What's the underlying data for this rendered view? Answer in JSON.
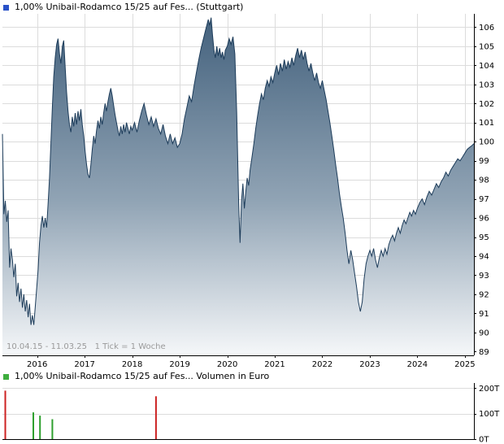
{
  "chart_data": [
    {
      "type": "area",
      "title": "1,00% Unibail-Rodamco 15/25 auf Fes... (Stuttgart)",
      "footer": "10.04.15 - 11.03.25   1 Tick = 1 Woche",
      "marker_color": "#2a52c8",
      "line_color": "#1d3c5a",
      "fill_top": "#42607c",
      "fill_mid": "#91a4b5",
      "fill_bottom": "#f5f7f9",
      "xlim": [
        2015.27,
        2025.19
      ],
      "ylim": [
        88.8,
        106.7
      ],
      "x_ticks": [
        2016,
        2017,
        2018,
        2019,
        2020,
        2021,
        2022,
        2023,
        2024,
        2025
      ],
      "y_ticks": [
        89,
        90,
        91,
        92,
        93,
        94,
        95,
        96,
        97,
        98,
        99,
        100,
        101,
        102,
        103,
        104,
        105,
        106
      ],
      "y_axis_side": "right",
      "grid": true,
      "points": [
        [
          2015.27,
          100.4
        ],
        [
          2015.3,
          96.2
        ],
        [
          2015.33,
          96.9
        ],
        [
          2015.36,
          95.8
        ],
        [
          2015.39,
          96.4
        ],
        [
          2015.42,
          93.4
        ],
        [
          2015.45,
          94.4
        ],
        [
          2015.48,
          93.8
        ],
        [
          2015.51,
          92.9
        ],
        [
          2015.54,
          93.6
        ],
        [
          2015.57,
          91.9
        ],
        [
          2015.6,
          92.6
        ],
        [
          2015.63,
          91.6
        ],
        [
          2015.66,
          92.3
        ],
        [
          2015.69,
          91.3
        ],
        [
          2015.72,
          92.0
        ],
        [
          2015.75,
          91.1
        ],
        [
          2015.78,
          91.7
        ],
        [
          2015.81,
          90.8
        ],
        [
          2015.84,
          91.5
        ],
        [
          2015.87,
          90.4
        ],
        [
          2015.9,
          90.9
        ],
        [
          2015.93,
          90.4
        ],
        [
          2015.96,
          91.3
        ],
        [
          2015.99,
          92.3
        ],
        [
          2016.02,
          93.3
        ],
        [
          2016.05,
          94.7
        ],
        [
          2016.08,
          95.6
        ],
        [
          2016.11,
          96.1
        ],
        [
          2016.14,
          95.5
        ],
        [
          2016.17,
          96.0
        ],
        [
          2016.2,
          95.5
        ],
        [
          2016.23,
          96.7
        ],
        [
          2016.26,
          98.1
        ],
        [
          2016.29,
          99.9
        ],
        [
          2016.32,
          101.8
        ],
        [
          2016.35,
          103.4
        ],
        [
          2016.38,
          104.4
        ],
        [
          2016.41,
          105.1
        ],
        [
          2016.44,
          105.4
        ],
        [
          2016.47,
          104.6
        ],
        [
          2016.5,
          104.1
        ],
        [
          2016.53,
          105.0
        ],
        [
          2016.56,
          105.3
        ],
        [
          2016.59,
          103.9
        ],
        [
          2016.62,
          102.6
        ],
        [
          2016.65,
          101.6
        ],
        [
          2016.68,
          100.9
        ],
        [
          2016.71,
          100.5
        ],
        [
          2016.74,
          101.3
        ],
        [
          2016.77,
          100.8
        ],
        [
          2016.8,
          101.5
        ],
        [
          2016.83,
          100.9
        ],
        [
          2016.86,
          101.6
        ],
        [
          2016.89,
          101.1
        ],
        [
          2016.92,
          101.7
        ],
        [
          2016.95,
          100.9
        ],
        [
          2016.98,
          100.3
        ],
        [
          2017.01,
          99.5
        ],
        [
          2017.04,
          98.8
        ],
        [
          2017.07,
          98.3
        ],
        [
          2017.1,
          98.1
        ],
        [
          2017.13,
          98.8
        ],
        [
          2017.16,
          99.6
        ],
        [
          2017.19,
          100.3
        ],
        [
          2017.22,
          99.9
        ],
        [
          2017.25,
          100.6
        ],
        [
          2017.28,
          101.1
        ],
        [
          2017.31,
          100.7
        ],
        [
          2017.34,
          101.3
        ],
        [
          2017.37,
          100.9
        ],
        [
          2017.4,
          101.5
        ],
        [
          2017.43,
          102.0
        ],
        [
          2017.46,
          101.6
        ],
        [
          2017.49,
          102.1
        ],
        [
          2017.52,
          102.5
        ],
        [
          2017.55,
          102.8
        ],
        [
          2017.58,
          102.4
        ],
        [
          2017.61,
          101.9
        ],
        [
          2017.64,
          101.4
        ],
        [
          2017.67,
          101.0
        ],
        [
          2017.7,
          100.6
        ],
        [
          2017.73,
          100.3
        ],
        [
          2017.76,
          100.8
        ],
        [
          2017.79,
          100.4
        ],
        [
          2017.82,
          100.9
        ],
        [
          2017.85,
          100.5
        ],
        [
          2017.88,
          101.0
        ],
        [
          2017.91,
          100.7
        ],
        [
          2017.94,
          100.4
        ],
        [
          2017.97,
          100.8
        ],
        [
          2018.0,
          100.6
        ],
        [
          2018.05,
          101.0
        ],
        [
          2018.1,
          100.5
        ],
        [
          2018.15,
          101.1
        ],
        [
          2018.2,
          101.6
        ],
        [
          2018.25,
          102.0
        ],
        [
          2018.3,
          101.4
        ],
        [
          2018.35,
          100.9
        ],
        [
          2018.4,
          101.3
        ],
        [
          2018.45,
          100.8
        ],
        [
          2018.5,
          101.2
        ],
        [
          2018.55,
          100.7
        ],
        [
          2018.6,
          100.4
        ],
        [
          2018.65,
          100.9
        ],
        [
          2018.7,
          100.3
        ],
        [
          2018.75,
          99.9
        ],
        [
          2018.8,
          100.4
        ],
        [
          2018.85,
          99.9
        ],
        [
          2018.9,
          100.2
        ],
        [
          2018.95,
          99.7
        ],
        [
          2019.0,
          99.9
        ],
        [
          2019.05,
          100.4
        ],
        [
          2019.1,
          101.2
        ],
        [
          2019.15,
          101.8
        ],
        [
          2019.2,
          102.4
        ],
        [
          2019.25,
          102.1
        ],
        [
          2019.3,
          102.9
        ],
        [
          2019.35,
          103.6
        ],
        [
          2019.4,
          104.3
        ],
        [
          2019.45,
          104.9
        ],
        [
          2019.5,
          105.4
        ],
        [
          2019.55,
          105.9
        ],
        [
          2019.6,
          106.4
        ],
        [
          2019.63,
          106.1
        ],
        [
          2019.66,
          106.5
        ],
        [
          2019.69,
          105.6
        ],
        [
          2019.72,
          104.8
        ],
        [
          2019.75,
          104.4
        ],
        [
          2019.78,
          105.0
        ],
        [
          2019.81,
          104.5
        ],
        [
          2019.84,
          104.9
        ],
        [
          2019.87,
          104.4
        ],
        [
          2019.9,
          104.7
        ],
        [
          2019.93,
          104.3
        ],
        [
          2019.96,
          104.8
        ],
        [
          2020.0,
          105.0
        ],
        [
          2020.04,
          105.4
        ],
        [
          2020.08,
          105.1
        ],
        [
          2020.12,
          105.5
        ],
        [
          2020.16,
          104.6
        ],
        [
          2020.2,
          101.5
        ],
        [
          2020.24,
          96.8
        ],
        [
          2020.27,
          94.7
        ],
        [
          2020.3,
          96.9
        ],
        [
          2020.33,
          97.8
        ],
        [
          2020.36,
          96.5
        ],
        [
          2020.39,
          97.4
        ],
        [
          2020.42,
          98.1
        ],
        [
          2020.45,
          97.7
        ],
        [
          2020.48,
          98.5
        ],
        [
          2020.52,
          99.2
        ],
        [
          2020.56,
          99.9
        ],
        [
          2020.6,
          100.7
        ],
        [
          2020.64,
          101.4
        ],
        [
          2020.68,
          102.0
        ],
        [
          2020.72,
          102.5
        ],
        [
          2020.76,
          102.2
        ],
        [
          2020.8,
          102.8
        ],
        [
          2020.84,
          103.2
        ],
        [
          2020.88,
          102.9
        ],
        [
          2020.92,
          103.4
        ],
        [
          2020.96,
          103.1
        ],
        [
          2021.0,
          103.6
        ],
        [
          2021.04,
          104.0
        ],
        [
          2021.08,
          103.5
        ],
        [
          2021.12,
          104.1
        ],
        [
          2021.16,
          103.7
        ],
        [
          2021.2,
          104.3
        ],
        [
          2021.24,
          103.8
        ],
        [
          2021.28,
          104.2
        ],
        [
          2021.32,
          103.9
        ],
        [
          2021.36,
          104.4
        ],
        [
          2021.4,
          104.0
        ],
        [
          2021.44,
          104.5
        ],
        [
          2021.48,
          104.9
        ],
        [
          2021.52,
          104.4
        ],
        [
          2021.56,
          104.8
        ],
        [
          2021.6,
          104.3
        ],
        [
          2021.64,
          104.7
        ],
        [
          2021.68,
          104.1
        ],
        [
          2021.72,
          103.7
        ],
        [
          2021.76,
          104.1
        ],
        [
          2021.8,
          103.6
        ],
        [
          2021.84,
          103.2
        ],
        [
          2021.88,
          103.6
        ],
        [
          2021.92,
          103.1
        ],
        [
          2021.96,
          102.8
        ],
        [
          2022.0,
          103.2
        ],
        [
          2022.04,
          102.7
        ],
        [
          2022.08,
          102.2
        ],
        [
          2022.12,
          101.6
        ],
        [
          2022.16,
          101.0
        ],
        [
          2022.2,
          100.3
        ],
        [
          2022.24,
          99.6
        ],
        [
          2022.28,
          98.8
        ],
        [
          2022.32,
          98.1
        ],
        [
          2022.36,
          97.3
        ],
        [
          2022.4,
          96.6
        ],
        [
          2022.44,
          96.0
        ],
        [
          2022.48,
          95.2
        ],
        [
          2022.52,
          94.3
        ],
        [
          2022.56,
          93.6
        ],
        [
          2022.6,
          94.3
        ],
        [
          2022.64,
          93.8
        ],
        [
          2022.68,
          93.1
        ],
        [
          2022.72,
          92.4
        ],
        [
          2022.76,
          91.6
        ],
        [
          2022.8,
          91.1
        ],
        [
          2022.84,
          91.6
        ],
        [
          2022.88,
          92.8
        ],
        [
          2022.92,
          93.6
        ],
        [
          2022.96,
          94.0
        ],
        [
          2023.0,
          94.3
        ],
        [
          2023.04,
          94.0
        ],
        [
          2023.08,
          94.4
        ],
        [
          2023.12,
          93.8
        ],
        [
          2023.16,
          93.4
        ],
        [
          2023.2,
          93.9
        ],
        [
          2023.24,
          94.3
        ],
        [
          2023.28,
          94.0
        ],
        [
          2023.32,
          94.4
        ],
        [
          2023.36,
          94.1
        ],
        [
          2023.4,
          94.6
        ],
        [
          2023.44,
          94.9
        ],
        [
          2023.48,
          95.1
        ],
        [
          2023.52,
          94.8
        ],
        [
          2023.56,
          95.2
        ],
        [
          2023.6,
          95.5
        ],
        [
          2023.64,
          95.2
        ],
        [
          2023.68,
          95.6
        ],
        [
          2023.72,
          95.9
        ],
        [
          2023.76,
          95.7
        ],
        [
          2023.8,
          96.0
        ],
        [
          2023.84,
          96.3
        ],
        [
          2023.88,
          96.1
        ],
        [
          2023.92,
          96.4
        ],
        [
          2023.96,
          96.2
        ],
        [
          2024.0,
          96.5
        ],
        [
          2024.05,
          96.8
        ],
        [
          2024.1,
          97.0
        ],
        [
          2024.15,
          96.7
        ],
        [
          2024.2,
          97.1
        ],
        [
          2024.25,
          97.4
        ],
        [
          2024.3,
          97.2
        ],
        [
          2024.35,
          97.5
        ],
        [
          2024.4,
          97.8
        ],
        [
          2024.45,
          97.6
        ],
        [
          2024.5,
          97.9
        ],
        [
          2024.55,
          98.1
        ],
        [
          2024.6,
          98.4
        ],
        [
          2024.65,
          98.2
        ],
        [
          2024.7,
          98.5
        ],
        [
          2024.75,
          98.7
        ],
        [
          2024.8,
          98.9
        ],
        [
          2024.85,
          99.1
        ],
        [
          2024.9,
          99.0
        ],
        [
          2024.95,
          99.2
        ],
        [
          2025.0,
          99.4
        ],
        [
          2025.05,
          99.6
        ],
        [
          2025.1,
          99.7
        ],
        [
          2025.15,
          99.8
        ],
        [
          2025.19,
          99.9
        ]
      ]
    },
    {
      "type": "bar",
      "title": "1,00% Unibail-Rodamco 15/25 auf Fes... Volumen in Euro",
      "marker_color": "#3fae3f",
      "xlim": [
        2015.27,
        2025.19
      ],
      "ylim": [
        0,
        220
      ],
      "y_ticks": [
        0,
        100,
        200
      ],
      "y_tick_labels": [
        "0T",
        "100T",
        "200T"
      ],
      "y_axis_side": "right",
      "bars": [
        {
          "x": 2015.33,
          "value": 190,
          "color": "#cc2222"
        },
        {
          "x": 2015.92,
          "value": 105,
          "color": "#2ea02e"
        },
        {
          "x": 2016.06,
          "value": 92,
          "color": "#2ea02e"
        },
        {
          "x": 2016.32,
          "value": 78,
          "color": "#2ea02e"
        },
        {
          "x": 2018.5,
          "value": 168,
          "color": "#cc2222"
        }
      ]
    }
  ]
}
